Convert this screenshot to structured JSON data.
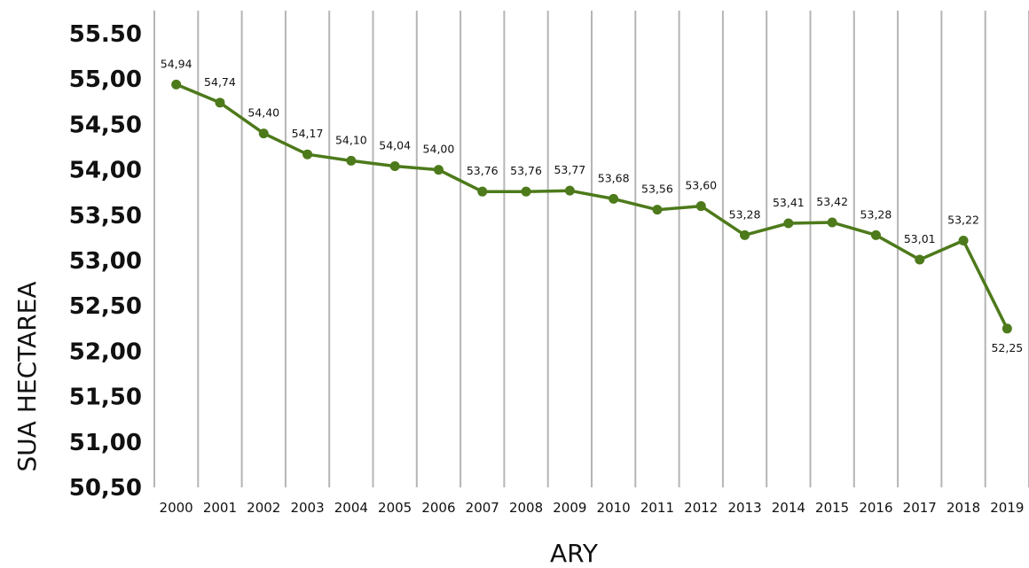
{
  "chart_data": {
    "type": "line",
    "title": "",
    "xlabel": "ARY",
    "ylabel": "SUA HECTAREA",
    "x": [
      "2000",
      "2001",
      "2002",
      "2003",
      "2004",
      "2005",
      "2006",
      "2007",
      "2008",
      "2009",
      "2010",
      "2011",
      "2012",
      "2013",
      "2014",
      "2015",
      "2016",
      "2017",
      "2018",
      "2019"
    ],
    "series": [
      {
        "color": "#4d7a1b",
        "values": [
          54.94,
          54.74,
          54.4,
          54.17,
          54.1,
          54.04,
          54.0,
          53.76,
          53.76,
          53.77,
          53.68,
          53.56,
          53.6,
          53.28,
          53.41,
          53.42,
          53.28,
          53.01,
          53.22,
          52.25
        ],
        "labels": [
          "54,94",
          "54,74",
          "54,40",
          "54,17",
          "54,10",
          "54,04",
          "54,00",
          "53,76",
          "53,76",
          "53,77",
          "53,68",
          "53,56",
          "53,60",
          "53,28",
          "53,41",
          "53,42",
          "53,28",
          "53,01",
          "53,22",
          "52,25"
        ]
      }
    ],
    "yticks": [
      "55.50",
      "55,00",
      "54,50",
      "54,00",
      "53,50",
      "53,00",
      "52,50",
      "52,00",
      "51,50",
      "51,00",
      "50,50"
    ],
    "ylim": [
      50.5,
      55.5
    ],
    "grid": "vertical",
    "legend": "none"
  }
}
